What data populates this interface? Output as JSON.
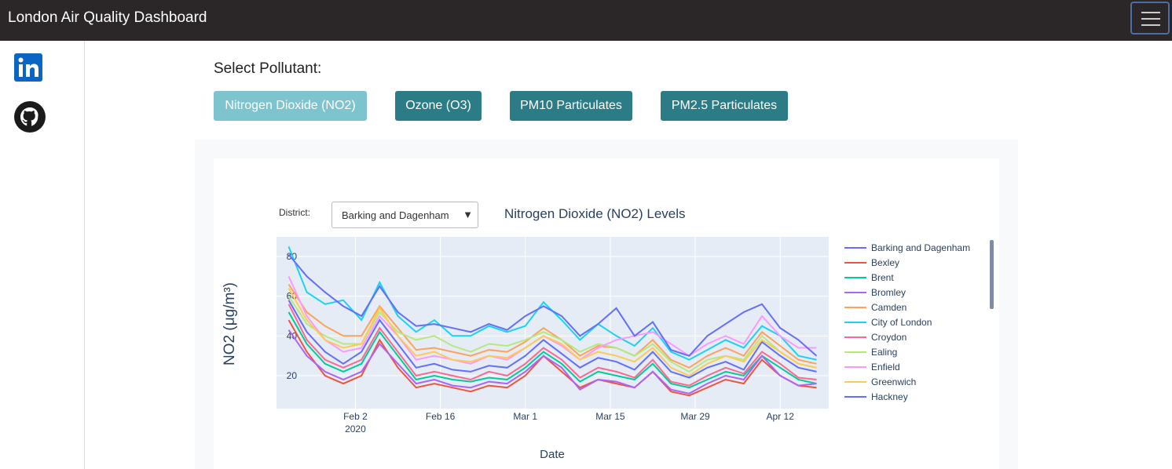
{
  "header": {
    "title": "London Air Quality Dashboard"
  },
  "controls": {
    "label": "Select Pollutant:",
    "buttons": [
      "Nitrogen Dioxide (NO2)",
      "Ozone (O3)",
      "PM10 Particulates",
      "PM2.5 Particulates"
    ],
    "selected": 0
  },
  "chart_data": {
    "type": "line",
    "title": "Nitrogen Dioxide (NO2) Levels",
    "dropdown_label": "District:",
    "dropdown_value": "Barking and Dagenham",
    "y_label": "NO2 (μg/m³)",
    "x_label": "Date",
    "grid": true,
    "legend": "right",
    "xlim": [
      "2020-01-20",
      "2020-04-20"
    ],
    "ylim": [
      3.4,
      89.9
    ],
    "yticks": [
      20,
      40,
      60,
      80
    ],
    "xticks": [
      {
        "value": "2020-02-02",
        "label": "Feb 2",
        "sublabel": "2020"
      },
      {
        "value": "2020-02-16",
        "label": "Feb 16"
      },
      {
        "value": "2020-03-01",
        "label": "Mar 1"
      },
      {
        "value": "2020-03-15",
        "label": "Mar 15"
      },
      {
        "value": "2020-03-29",
        "label": "Mar 29"
      },
      {
        "value": "2020-04-12",
        "label": "Apr 12"
      }
    ],
    "x": [
      "2020-01-22",
      "2020-01-25",
      "2020-01-28",
      "2020-01-31",
      "2020-02-03",
      "2020-02-06",
      "2020-02-09",
      "2020-02-12",
      "2020-02-15",
      "2020-02-18",
      "2020-02-21",
      "2020-02-24",
      "2020-02-27",
      "2020-03-01",
      "2020-03-04",
      "2020-03-07",
      "2020-03-10",
      "2020-03-13",
      "2020-03-16",
      "2020-03-19",
      "2020-03-22",
      "2020-03-25",
      "2020-03-28",
      "2020-03-31",
      "2020-04-03",
      "2020-04-06",
      "2020-04-09",
      "2020-04-12",
      "2020-04-15",
      "2020-04-18"
    ],
    "series": [
      {
        "name": "Barking and Dagenham",
        "color": "#636efa",
        "values": [
          58,
          42,
          32,
          26,
          32,
          48,
          36,
          24,
          26,
          23,
          22,
          25,
          24,
          30,
          38,
          31,
          24,
          29,
          27,
          23,
          32,
          22,
          19,
          24,
          27,
          23,
          37,
          30,
          24,
          22
        ]
      },
      {
        "name": "Bexley",
        "color": "#ef553b",
        "values": [
          48,
          32,
          20,
          16,
          20,
          38,
          24,
          14,
          16,
          14,
          12,
          15,
          14,
          20,
          30,
          22,
          14,
          18,
          16,
          14,
          22,
          12,
          10,
          14,
          18,
          16,
          28,
          20,
          15,
          14
        ]
      },
      {
        "name": "Brent",
        "color": "#00cc96",
        "values": [
          52,
          36,
          26,
          22,
          26,
          42,
          30,
          18,
          20,
          18,
          17,
          19,
          18,
          24,
          32,
          26,
          17,
          22,
          20,
          18,
          26,
          16,
          14,
          18,
          22,
          20,
          30,
          24,
          18,
          16
        ]
      },
      {
        "name": "Bromley",
        "color": "#ab63fa",
        "values": [
          43,
          30,
          22,
          18,
          22,
          36,
          26,
          16,
          18,
          15,
          14,
          17,
          16,
          22,
          30,
          24,
          13,
          18,
          17,
          14,
          22,
          13,
          11,
          16,
          20,
          18,
          30,
          20,
          15,
          16
        ]
      },
      {
        "name": "Camden",
        "color": "#ffa15a",
        "values": [
          66,
          52,
          45,
          40,
          40,
          55,
          44,
          33,
          34,
          32,
          30,
          33,
          32,
          37,
          44,
          38,
          30,
          35,
          34,
          30,
          38,
          28,
          24,
          30,
          34,
          30,
          42,
          35,
          28,
          26
        ]
      },
      {
        "name": "City of London",
        "color": "#19d3f3",
        "values": [
          85,
          62,
          56,
          58,
          48,
          67,
          50,
          42,
          48,
          40,
          40,
          45,
          42,
          45,
          57,
          48,
          38,
          46,
          40,
          35,
          44,
          32,
          28,
          33,
          38,
          34,
          45,
          40,
          30,
          28
        ]
      },
      {
        "name": "Croydon",
        "color": "#ff6692",
        "values": [
          56,
          38,
          28,
          24,
          28,
          44,
          32,
          20,
          22,
          20,
          18,
          22,
          20,
          26,
          34,
          28,
          19,
          24,
          22,
          19,
          28,
          17,
          15,
          20,
          24,
          21,
          32,
          26,
          19,
          18
        ]
      },
      {
        "name": "Ealing",
        "color": "#b6e880",
        "values": [
          60,
          46,
          40,
          36,
          36,
          52,
          42,
          38,
          40,
          35,
          32,
          36,
          35,
          38,
          42,
          38,
          32,
          36,
          34,
          30,
          36,
          27,
          22,
          28,
          30,
          28,
          40,
          32,
          26,
          24
        ]
      },
      {
        "name": "Enfield",
        "color": "#ff97ff",
        "values": [
          70,
          50,
          38,
          32,
          34,
          50,
          40,
          28,
          30,
          28,
          26,
          30,
          28,
          34,
          40,
          35,
          28,
          34,
          38,
          40,
          42,
          36,
          30,
          36,
          40,
          36,
          50,
          40,
          34,
          34
        ]
      },
      {
        "name": "Greenwich",
        "color": "#fecb52",
        "values": [
          64,
          48,
          38,
          34,
          36,
          54,
          40,
          30,
          32,
          28,
          27,
          30,
          29,
          34,
          40,
          36,
          28,
          32,
          30,
          27,
          34,
          24,
          20,
          26,
          30,
          27,
          38,
          32,
          26,
          24
        ]
      },
      {
        "name": "Hackney",
        "color": "#636efa",
        "values": [
          81,
          70,
          62,
          55,
          50,
          65,
          52,
          45,
          46,
          44,
          42,
          46,
          43,
          50,
          55,
          50,
          40,
          46,
          54,
          40,
          47,
          33,
          30,
          40,
          46,
          52,
          56,
          44,
          38,
          30
        ]
      }
    ]
  }
}
